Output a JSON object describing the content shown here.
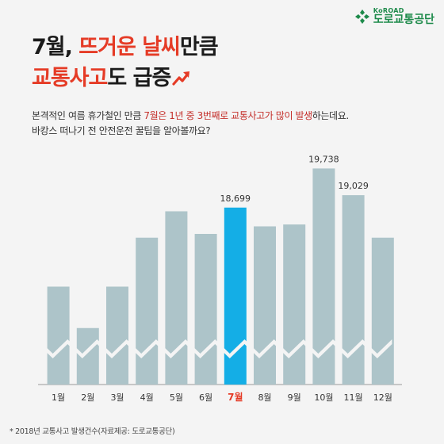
{
  "logo": {
    "name_en": "KoROAD",
    "name_ko": "도로교통공단",
    "icon": "clover-cross-icon",
    "color": "#1d8a4a"
  },
  "title": {
    "line1_prefix": "7월, ",
    "line1_highlight": "뜨거운 날씨",
    "line1_suffix": "만큼",
    "line2_highlight": "교통사고",
    "line2_suffix": "도 급증",
    "arrow_icon": "trend-up-arrow-icon"
  },
  "description": {
    "line1_prefix": "본격적인 여름 휴가철인 만큼 ",
    "line1_highlight": "7월은 1년 중 3번째로 교통사고가 많이 발생",
    "line1_suffix": "하는데요.",
    "line2": "바캉스 떠나기 전 안전운전 꿀팁을 알아볼까요?"
  },
  "footnote": "* 2018년 교통사고 발생건수(자료제공: 도로교통공단)",
  "colors": {
    "bar": "#adc4c9",
    "highlight_bar": "#14aee6",
    "highlight_label": "#e53b26",
    "title_highlight": "#e53b26",
    "background": "#f4f4f4"
  },
  "chart_data": {
    "type": "bar",
    "categories": [
      "1월",
      "2월",
      "3월",
      "4월",
      "5월",
      "6월",
      "7월",
      "8월",
      "9월",
      "10월",
      "11월",
      "12월"
    ],
    "values": [
      16600,
      15500,
      16600,
      17900,
      18600,
      18000,
      18699,
      18200,
      18250,
      19738,
      19029,
      17900
    ],
    "data_labels": [
      "",
      "",
      "",
      "",
      "",
      "",
      "18,699",
      "",
      "",
      "19,738",
      "19,029",
      ""
    ],
    "highlight_category": "7월",
    "axis_break": true,
    "grid": false,
    "xlabel": "",
    "ylabel": "",
    "ylim": [
      14000,
      20000
    ]
  }
}
